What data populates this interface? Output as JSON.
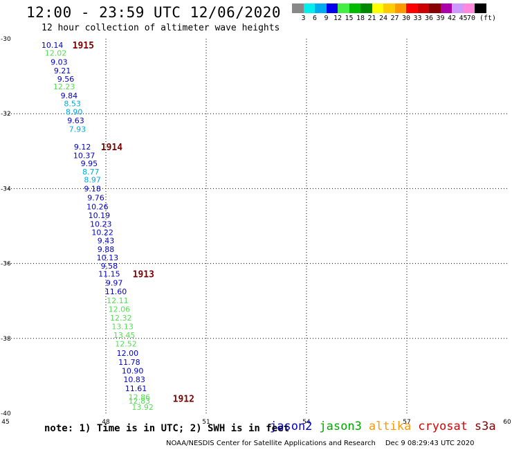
{
  "title": "12:00 - 23:59 UTC 12/06/2020",
  "subtitle": "12 hour collection of altimeter wave heights",
  "colorbar": {
    "colors": [
      "#888888",
      "#00eeee",
      "#00aaee",
      "#0000ee",
      "#44ee44",
      "#00bb00",
      "#008800",
      "#ffff00",
      "#ffcc00",
      "#ff9900",
      "#ff0000",
      "#cc0000",
      "#880000",
      "#aa00aa",
      "#cc99ff",
      "#ff88dd",
      "#000000"
    ],
    "labels": [
      "3",
      "6",
      "9",
      "12",
      "15",
      "18",
      "21",
      "24",
      "27",
      "30",
      "33",
      "36",
      "39",
      "42",
      "45",
      "70 (ft)"
    ]
  },
  "chart_data": {
    "type": "scatter",
    "xlim": [
      45,
      60
    ],
    "ylim": [
      -40,
      -30
    ],
    "xticks": [
      "45",
      "48",
      "51",
      "54",
      "57",
      "60"
    ],
    "yticks": [
      "-30",
      "-32",
      "-34",
      "-36",
      "-38",
      "-40"
    ],
    "grid": true,
    "points": [
      {
        "lon": 46.4,
        "lat": -30.17,
        "value": "10.14",
        "sat": "jason2"
      },
      {
        "lon": 46.5,
        "lat": -30.38,
        "value": "12.02",
        "sat": "jason3"
      },
      {
        "lon": 46.6,
        "lat": -30.62,
        "value": "9.03",
        "sat": "jason2"
      },
      {
        "lon": 46.7,
        "lat": -30.85,
        "value": "9.21",
        "sat": "jason2"
      },
      {
        "lon": 46.8,
        "lat": -31.07,
        "value": "9.56",
        "sat": "jason2"
      },
      {
        "lon": 46.75,
        "lat": -31.28,
        "value": "12.23",
        "sat": "jason3"
      },
      {
        "lon": 46.9,
        "lat": -31.52,
        "value": "9.84",
        "sat": "jason2"
      },
      {
        "lon": 47.0,
        "lat": -31.73,
        "value": "8.53",
        "sat": "cyan"
      },
      {
        "lon": 47.05,
        "lat": -31.95,
        "value": "8.90",
        "sat": "cyan"
      },
      {
        "lon": 47.1,
        "lat": -32.18,
        "value": "9.63",
        "sat": "jason2"
      },
      {
        "lon": 47.15,
        "lat": -32.41,
        "value": "7.93",
        "sat": "cyan"
      },
      {
        "lon": 47.3,
        "lat": -32.88,
        "value": "9.12",
        "sat": "jason2"
      },
      {
        "lon": 47.35,
        "lat": -33.11,
        "value": "10.37",
        "sat": "jason2"
      },
      {
        "lon": 47.5,
        "lat": -33.33,
        "value": "9.95",
        "sat": "jason2"
      },
      {
        "lon": 47.55,
        "lat": -33.55,
        "value": "8.77",
        "sat": "cyan"
      },
      {
        "lon": 47.6,
        "lat": -33.76,
        "value": "8.97",
        "sat": "cyan"
      },
      {
        "lon": 47.6,
        "lat": -34.0,
        "value": "9.18",
        "sat": "jason2"
      },
      {
        "lon": 47.7,
        "lat": -34.24,
        "value": "9.76",
        "sat": "jason2"
      },
      {
        "lon": 47.75,
        "lat": -34.48,
        "value": "10.26",
        "sat": "jason2"
      },
      {
        "lon": 47.8,
        "lat": -34.71,
        "value": "10.19",
        "sat": "jason2"
      },
      {
        "lon": 47.85,
        "lat": -34.94,
        "value": "10.23",
        "sat": "jason2"
      },
      {
        "lon": 47.9,
        "lat": -35.17,
        "value": "10.22",
        "sat": "jason2"
      },
      {
        "lon": 48.0,
        "lat": -35.39,
        "value": "9.43",
        "sat": "jason2"
      },
      {
        "lon": 48.0,
        "lat": -35.62,
        "value": "9.88",
        "sat": "jason2"
      },
      {
        "lon": 48.05,
        "lat": -35.84,
        "value": "10.13",
        "sat": "jason2"
      },
      {
        "lon": 48.1,
        "lat": -36.06,
        "value": "9.58",
        "sat": "jason2"
      },
      {
        "lon": 48.1,
        "lat": -36.28,
        "value": "11.15",
        "sat": "jason2"
      },
      {
        "lon": 48.25,
        "lat": -36.52,
        "value": "9.97",
        "sat": "jason2"
      },
      {
        "lon": 48.3,
        "lat": -36.75,
        "value": "11.60",
        "sat": "jason2"
      },
      {
        "lon": 48.35,
        "lat": -36.99,
        "value": "12.11",
        "sat": "jason3"
      },
      {
        "lon": 48.4,
        "lat": -37.22,
        "value": "12.06",
        "sat": "jason3"
      },
      {
        "lon": 48.45,
        "lat": -37.45,
        "value": "12.32",
        "sat": "jason3"
      },
      {
        "lon": 48.5,
        "lat": -37.68,
        "value": "13.13",
        "sat": "jason3"
      },
      {
        "lon": 48.55,
        "lat": -37.91,
        "value": "13.45",
        "sat": "jason3"
      },
      {
        "lon": 48.6,
        "lat": -38.14,
        "value": "12.52",
        "sat": "jason3"
      },
      {
        "lon": 48.65,
        "lat": -38.39,
        "value": "12.00",
        "sat": "jason2"
      },
      {
        "lon": 48.7,
        "lat": -38.63,
        "value": "11.78",
        "sat": "jason2"
      },
      {
        "lon": 48.8,
        "lat": -38.86,
        "value": "10.90",
        "sat": "jason2"
      },
      {
        "lon": 48.85,
        "lat": -39.09,
        "value": "10.83",
        "sat": "jason2"
      },
      {
        "lon": 48.9,
        "lat": -39.33,
        "value": "11.61",
        "sat": "jason2"
      },
      {
        "lon": 49.0,
        "lat": -39.57,
        "value": "12.86",
        "sat": "jason3"
      },
      {
        "lon": 49.0,
        "lat": -39.67,
        "value": "12.83",
        "sat": "jason3"
      },
      {
        "lon": 49.1,
        "lat": -39.83,
        "value": "13.92",
        "sat": "jason3"
      }
    ],
    "pass_labels": [
      {
        "lon": 47.0,
        "lat": -30.17,
        "text": "1915"
      },
      {
        "lon": 47.85,
        "lat": -32.88,
        "text": "1914"
      },
      {
        "lon": 48.8,
        "lat": -36.28,
        "text": "1913"
      },
      {
        "lon": 50.0,
        "lat": -39.6,
        "text": "1912"
      }
    ]
  },
  "note": "note: 1) Time is in UTC; 2) SWH is in feet",
  "legend": [
    {
      "name": "jason2",
      "color": "#0000cc"
    },
    {
      "name": "jason3",
      "color": "#00aa00"
    },
    {
      "name": "altika",
      "color": "#ff9900"
    },
    {
      "name": "cryosat",
      "color": "#dd0000"
    },
    {
      "name": "s3a",
      "color": "#880000"
    }
  ],
  "footer": {
    "source": "NOAA/NESDIS Center for Satellite Applications and Research",
    "timestamp": "Dec  9 08:29:43 UTC 2020"
  },
  "sat_colors": {
    "jason2": "#0000cc",
    "jason3": "#55dd55",
    "cyan": "#00aadd"
  }
}
